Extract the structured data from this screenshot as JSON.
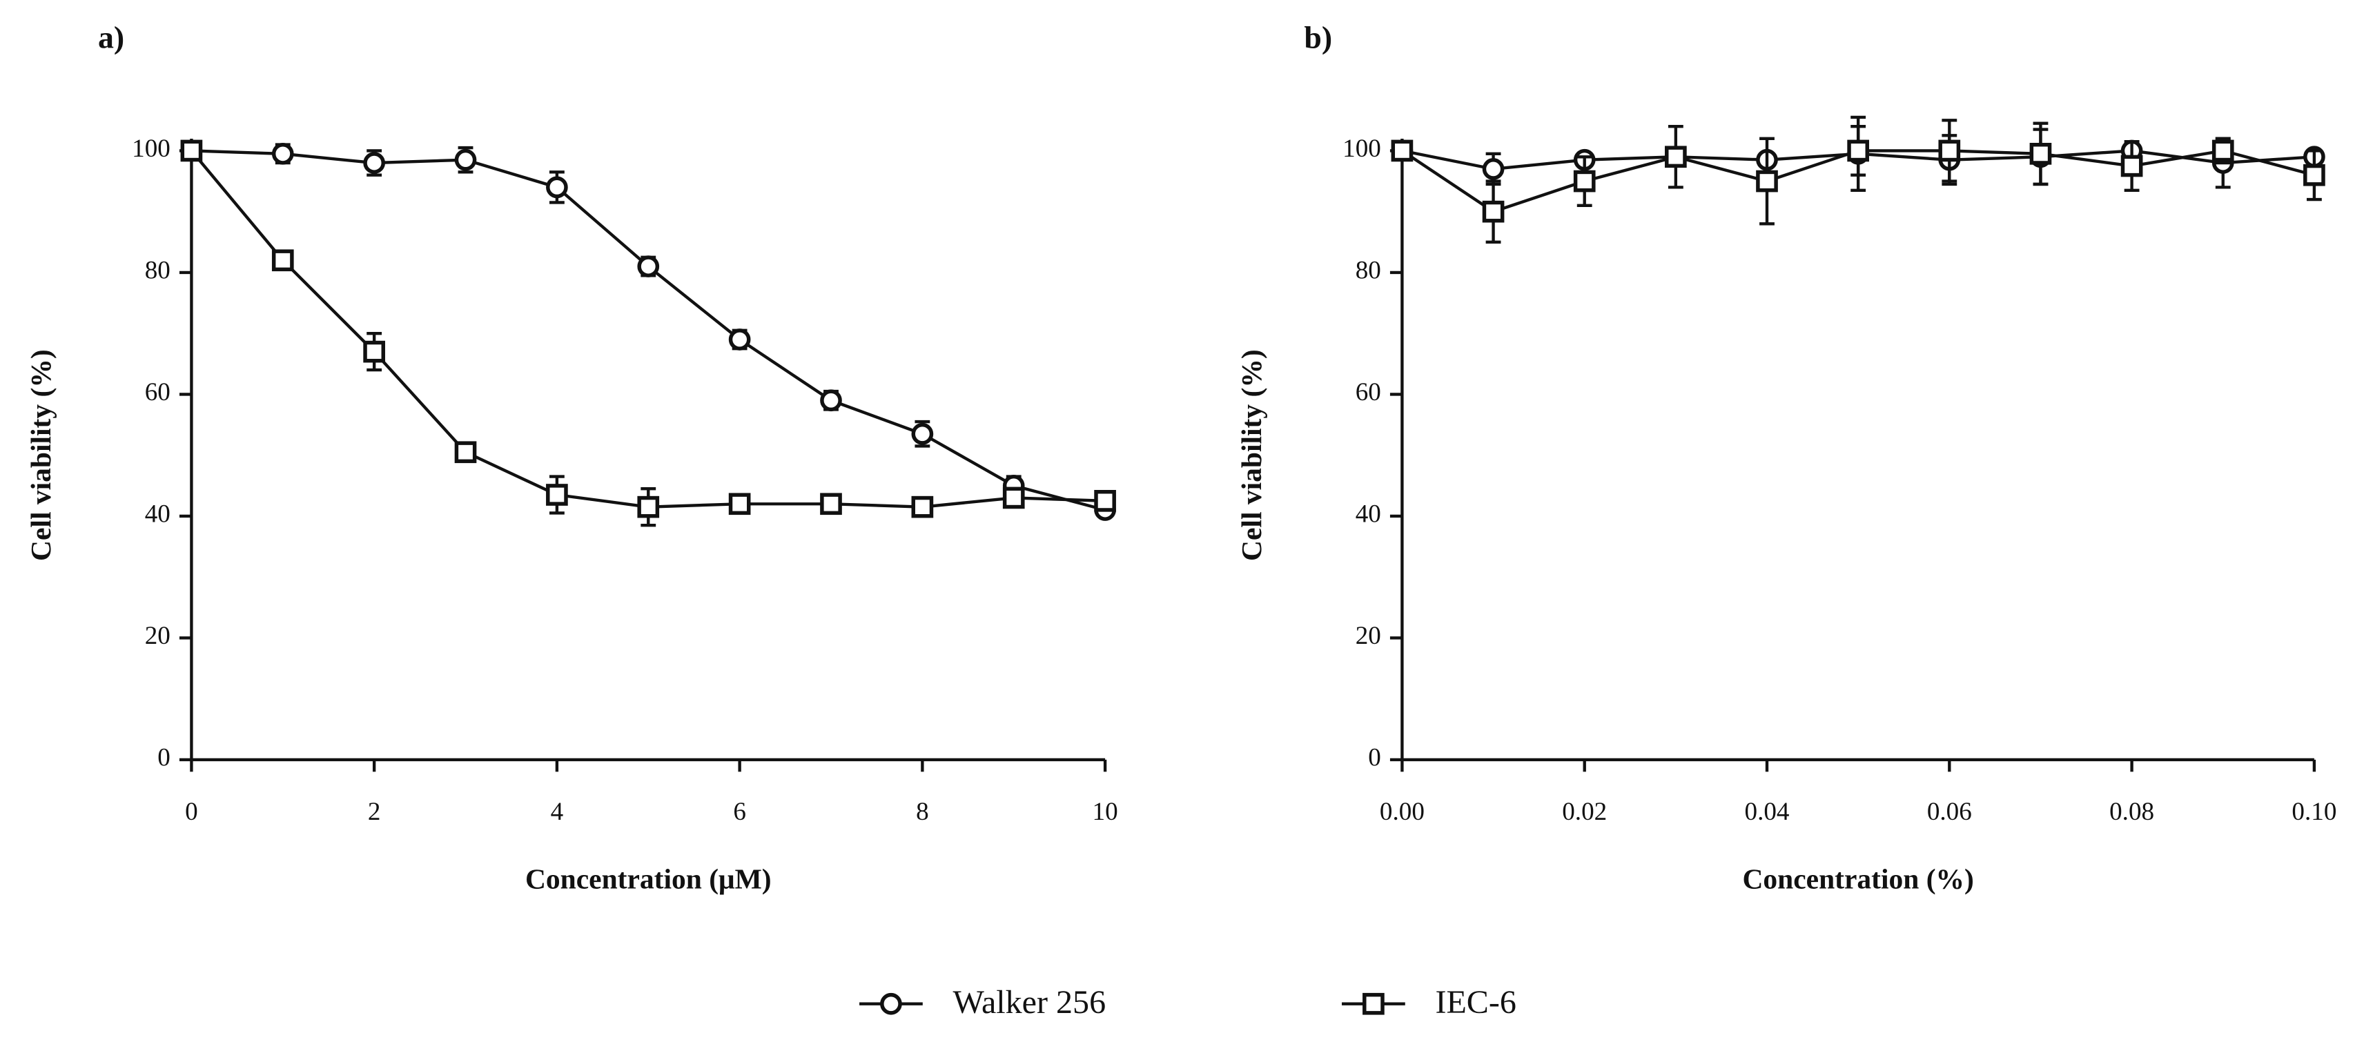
{
  "chart_data": [
    {
      "type": "line",
      "panel": "a)",
      "xlabel": "Concentration (μM)",
      "ylabel": "Cell viability (%)",
      "x": [
        0,
        1,
        2,
        3,
        4,
        5,
        6,
        7,
        8,
        9,
        10
      ],
      "xlim": [
        0,
        10
      ],
      "xticks": [
        0,
        2,
        4,
        6,
        8,
        10
      ],
      "ylim": [
        0,
        100
      ],
      "yticks": [
        0,
        20,
        40,
        60,
        80,
        100
      ],
      "series": [
        {
          "marker": "circle",
          "color": "#111111",
          "values": [
            100,
            99.5,
            98,
            98.5,
            94,
            81,
            69,
            59,
            53.5,
            45,
            41
          ],
          "errors": [
            0,
            1.5,
            2,
            2,
            2.5,
            1.5,
            1.5,
            1.5,
            2,
            1.5,
            1
          ]
        },
        {
          "marker": "square",
          "color": "#111111",
          "values": [
            100,
            82,
            67,
            50.5,
            43.5,
            41.5,
            42,
            42,
            41.5,
            43,
            42.5
          ],
          "errors": [
            0,
            1.5,
            3,
            1.5,
            3,
            3,
            1.5,
            1.5,
            1.5,
            1.5,
            1
          ]
        }
      ]
    },
    {
      "type": "line",
      "panel": "b)",
      "xlabel": "Concentration (%)",
      "ylabel": "Cell viability (%)",
      "x": [
        0,
        0.01,
        0.02,
        0.03,
        0.04,
        0.05,
        0.06,
        0.07,
        0.08,
        0.09,
        0.1
      ],
      "xlim": [
        0,
        0.1
      ],
      "xticks": [
        {
          "value": 0,
          "label": "0.00"
        },
        {
          "value": 0.02,
          "label": "0.02"
        },
        {
          "value": 0.04,
          "label": "0.04"
        },
        {
          "value": 0.06,
          "label": "0.06"
        },
        {
          "value": 0.08,
          "label": "0.08"
        },
        {
          "value": 0.1,
          "label": "0.10"
        }
      ],
      "ylim": [
        0,
        100
      ],
      "yticks": [
        0,
        20,
        40,
        60,
        80,
        100
      ],
      "series": [
        {
          "marker": "circle",
          "color": "#111111",
          "values": [
            100,
            97,
            98.5,
            99,
            98.5,
            99.5,
            98.5,
            99,
            100,
            98,
            99
          ],
          "errors": [
            0,
            2.5,
            1,
            1,
            1,
            6,
            4,
            4.5,
            1,
            4,
            1
          ]
        },
        {
          "marker": "square",
          "color": "#111111",
          "values": [
            100,
            90,
            95,
            99,
            95,
            100,
            100,
            99.5,
            97.5,
            100,
            96
          ],
          "errors": [
            0,
            5,
            4,
            5,
            7,
            4,
            5,
            5,
            4,
            2,
            4
          ]
        }
      ]
    }
  ],
  "legend": {
    "entries": [
      {
        "name": "Walker 256",
        "marker": "circle"
      },
      {
        "name": "IEC-6",
        "marker": "square"
      }
    ]
  }
}
